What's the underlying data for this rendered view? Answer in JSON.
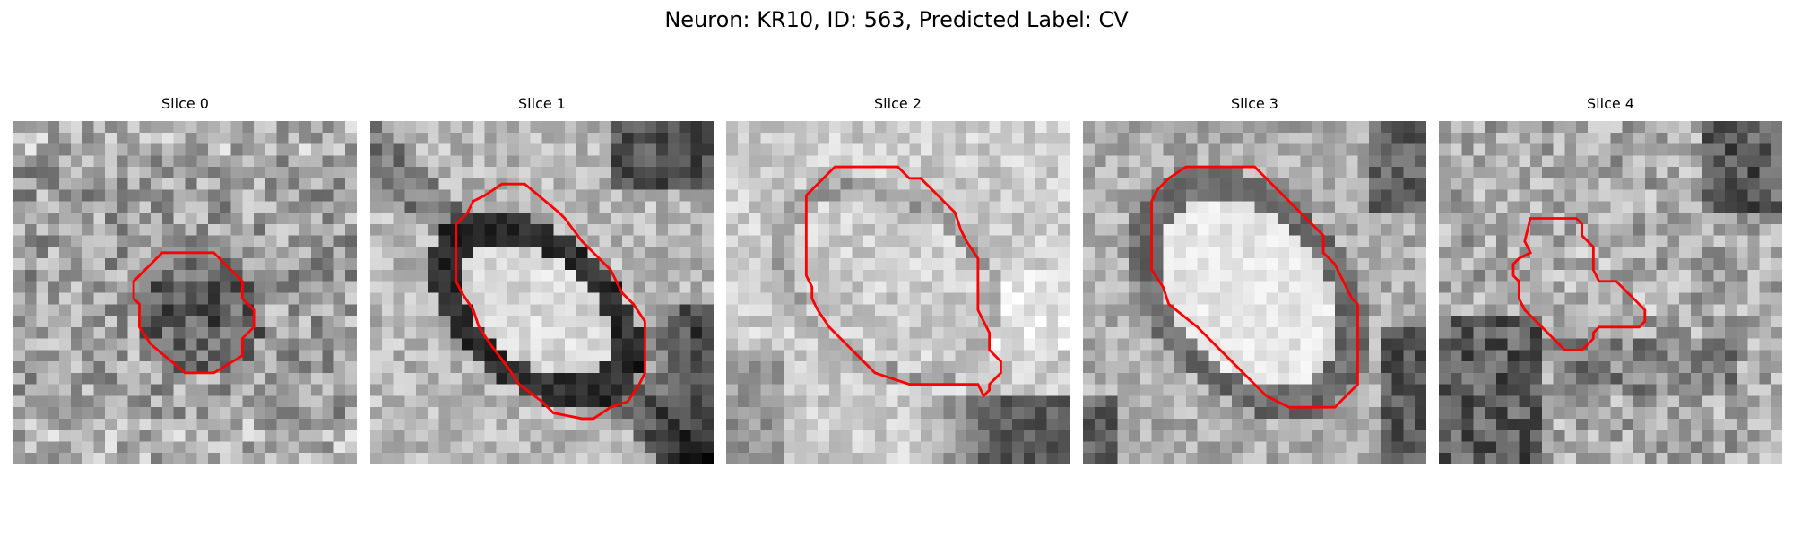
{
  "figure": {
    "title": "Neuron: KR10, ID: 563, Predicted Label: CV"
  },
  "panels": [
    {
      "title": "Slice 0",
      "image_seed": 11,
      "contour_color": "#ff0000"
    },
    {
      "title": "Slice 1",
      "image_seed": 23,
      "contour_color": "#ff0000"
    },
    {
      "title": "Slice 2",
      "image_seed": 37,
      "contour_color": "#ff0000"
    },
    {
      "title": "Slice 3",
      "image_seed": 49,
      "contour_color": "#ff0000"
    },
    {
      "title": "Slice 4",
      "image_seed": 61,
      "contour_color": "#ff0000"
    }
  ],
  "colormap": "gray"
}
